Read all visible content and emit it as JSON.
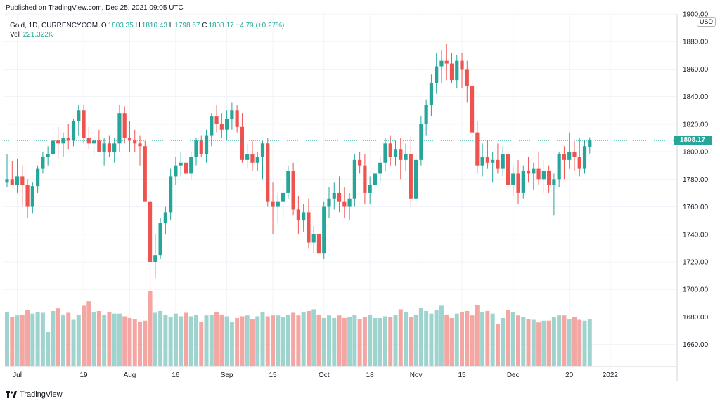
{
  "header": {
    "published": "Published on TradingView.com, Dec 25, 2021 09:05 UTC"
  },
  "legend": {
    "symbol": "Gold, 1D, CURRENCYCOM",
    "o_label": "O",
    "o": "1803.35",
    "h_label": "H",
    "h": "1810.43",
    "l_label": "L",
    "l": "1798.67",
    "c_label": "C",
    "c": "1808.17",
    "change": "+4.79 (+0.27%)",
    "vol_label": "Vol",
    "vol": "221.322K"
  },
  "currency": "USD",
  "last_price": "1808.17",
  "footer": {
    "brand": "TradingView"
  },
  "colors": {
    "up": "#26a69a",
    "down": "#ef5350",
    "vol_up": "#9ed4cd",
    "vol_down": "#f4a6a3"
  },
  "chart_data": {
    "type": "candlestick",
    "title": "Gold, 1D, CURRENCYCOM",
    "y_ticks": [
      "1660.00",
      "1680.00",
      "1700.00",
      "1720.00",
      "1740.00",
      "1760.00",
      "1780.00",
      "1800.00",
      "1820.00",
      "1840.00",
      "1860.00",
      "1880.00",
      "1900.00"
    ],
    "ylim": [
      1644,
      1900
    ],
    "x_labels": [
      {
        "label": "Jul",
        "index": 2
      },
      {
        "label": "19",
        "index": 15
      },
      {
        "label": "Aug",
        "index": 24
      },
      {
        "label": "16",
        "index": 33
      },
      {
        "label": "Sep",
        "index": 43
      },
      {
        "label": "15",
        "index": 52
      },
      {
        "label": "Oct",
        "index": 62
      },
      {
        "label": "18",
        "index": 71
      },
      {
        "label": "Nov",
        "index": 80
      },
      {
        "label": "15",
        "index": 89
      },
      {
        "label": "Dec",
        "index": 99
      },
      {
        "label": "20",
        "index": 110
      },
      {
        "label": "2022",
        "index": 118
      }
    ],
    "candles": [
      [
        1778,
        1798,
        1774,
        1780,
        0.62
      ],
      [
        1780,
        1793,
        1776,
        1776,
        0.56
      ],
      [
        1776,
        1795,
        1770,
        1782,
        0.58
      ],
      [
        1782,
        1790,
        1760,
        1776,
        0.59
      ],
      [
        1776,
        1780,
        1752,
        1760,
        0.64
      ],
      [
        1760,
        1778,
        1755,
        1775,
        0.6
      ],
      [
        1775,
        1790,
        1770,
        1788,
        0.62
      ],
      [
        1788,
        1800,
        1784,
        1796,
        0.61
      ],
      [
        1796,
        1804,
        1790,
        1798,
        0.39
      ],
      [
        1798,
        1812,
        1794,
        1808,
        0.63
      ],
      [
        1808,
        1818,
        1795,
        1806,
        0.66
      ],
      [
        1806,
        1814,
        1796,
        1810,
        0.59
      ],
      [
        1810,
        1820,
        1802,
        1808,
        0.61
      ],
      [
        1808,
        1824,
        1804,
        1822,
        0.53
      ],
      [
        1822,
        1834,
        1812,
        1830,
        0.59
      ],
      [
        1830,
        1834,
        1806,
        1810,
        0.69
      ],
      [
        1810,
        1818,
        1802,
        1806,
        0.74
      ],
      [
        1806,
        1812,
        1796,
        1808,
        0.62
      ],
      [
        1808,
        1816,
        1800,
        1800,
        0.63
      ],
      [
        1800,
        1810,
        1790,
        1806,
        0.59
      ],
      [
        1806,
        1812,
        1796,
        1800,
        0.62
      ],
      [
        1800,
        1810,
        1792,
        1806,
        0.6
      ],
      [
        1806,
        1834,
        1800,
        1828,
        0.6
      ],
      [
        1828,
        1833,
        1806,
        1810,
        0.57
      ],
      [
        1810,
        1822,
        1800,
        1808,
        0.55
      ],
      [
        1808,
        1816,
        1800,
        1806,
        0.54
      ],
      [
        1806,
        1812,
        1790,
        1804,
        0.51
      ],
      [
        1804,
        1808,
        1766,
        1764,
        0.52
      ],
      [
        1764,
        1768,
        1670,
        1720,
        0.86
      ],
      [
        1720,
        1740,
        1708,
        1725,
        0.61
      ],
      [
        1725,
        1752,
        1722,
        1748,
        0.63
      ],
      [
        1748,
        1760,
        1740,
        1756,
        0.59
      ],
      [
        1756,
        1788,
        1750,
        1782,
        0.56
      ],
      [
        1782,
        1796,
        1776,
        1790,
        0.6
      ],
      [
        1790,
        1800,
        1782,
        1792,
        0.57
      ],
      [
        1792,
        1798,
        1780,
        1784,
        0.61
      ],
      [
        1784,
        1800,
        1780,
        1796,
        0.57
      ],
      [
        1796,
        1810,
        1790,
        1808,
        0.59
      ],
      [
        1808,
        1812,
        1796,
        1798,
        0.51
      ],
      [
        1798,
        1816,
        1792,
        1812,
        0.58
      ],
      [
        1812,
        1828,
        1804,
        1826,
        0.59
      ],
      [
        1826,
        1834,
        1814,
        1820,
        0.62
      ],
      [
        1820,
        1828,
        1810,
        1816,
        0.59
      ],
      [
        1816,
        1830,
        1808,
        1824,
        0.57
      ],
      [
        1824,
        1836,
        1816,
        1830,
        0.51
      ],
      [
        1830,
        1834,
        1814,
        1818,
        0.55
      ],
      [
        1818,
        1828,
        1792,
        1794,
        0.57
      ],
      [
        1794,
        1806,
        1788,
        1798,
        0.58
      ],
      [
        1798,
        1808,
        1786,
        1792,
        0.54
      ],
      [
        1792,
        1800,
        1786,
        1796,
        0.57
      ],
      [
        1796,
        1808,
        1780,
        1806,
        0.62
      ],
      [
        1806,
        1810,
        1760,
        1764,
        0.57
      ],
      [
        1764,
        1778,
        1740,
        1760,
        0.58
      ],
      [
        1760,
        1770,
        1748,
        1764,
        0.58
      ],
      [
        1764,
        1776,
        1752,
        1770,
        0.56
      ],
      [
        1770,
        1790,
        1766,
        1786,
        0.59
      ],
      [
        1786,
        1792,
        1754,
        1758,
        0.61
      ],
      [
        1758,
        1768,
        1740,
        1750,
        0.58
      ],
      [
        1750,
        1762,
        1742,
        1756,
        0.62
      ],
      [
        1756,
        1766,
        1730,
        1734,
        0.63
      ],
      [
        1734,
        1746,
        1726,
        1740,
        0.65
      ],
      [
        1740,
        1752,
        1722,
        1726,
        0.59
      ],
      [
        1726,
        1764,
        1722,
        1760,
        0.55
      ],
      [
        1760,
        1774,
        1752,
        1766,
        0.58
      ],
      [
        1766,
        1778,
        1758,
        1770,
        0.55
      ],
      [
        1770,
        1782,
        1756,
        1764,
        0.58
      ],
      [
        1764,
        1774,
        1752,
        1760,
        0.55
      ],
      [
        1760,
        1770,
        1750,
        1766,
        0.56
      ],
      [
        1766,
        1798,
        1760,
        1794,
        0.59
      ],
      [
        1794,
        1800,
        1784,
        1790,
        0.54
      ],
      [
        1790,
        1798,
        1762,
        1770,
        0.56
      ],
      [
        1770,
        1782,
        1762,
        1776,
        0.59
      ],
      [
        1776,
        1788,
        1770,
        1784,
        0.55
      ],
      [
        1784,
        1796,
        1778,
        1792,
        0.55
      ],
      [
        1792,
        1810,
        1786,
        1806,
        0.57
      ],
      [
        1806,
        1812,
        1790,
        1796,
        0.56
      ],
      [
        1796,
        1808,
        1790,
        1802,
        0.59
      ],
      [
        1802,
        1810,
        1780,
        1794,
        0.65
      ],
      [
        1794,
        1806,
        1786,
        1798,
        0.62
      ],
      [
        1798,
        1812,
        1760,
        1766,
        0.56
      ],
      [
        1766,
        1798,
        1764,
        1794,
        0.59
      ],
      [
        1794,
        1826,
        1790,
        1820,
        0.67
      ],
      [
        1820,
        1838,
        1812,
        1834,
        0.63
      ],
      [
        1834,
        1856,
        1826,
        1850,
        0.6
      ],
      [
        1850,
        1872,
        1842,
        1862,
        0.64
      ],
      [
        1862,
        1874,
        1850,
        1866,
        0.69
      ],
      [
        1866,
        1878,
        1852,
        1864,
        0.59
      ],
      [
        1864,
        1872,
        1850,
        1852,
        0.55
      ],
      [
        1852,
        1870,
        1846,
        1866,
        0.6
      ],
      [
        1866,
        1872,
        1846,
        1860,
        0.62
      ],
      [
        1860,
        1866,
        1836,
        1848,
        0.63
      ],
      [
        1848,
        1852,
        1810,
        1814,
        0.58
      ],
      [
        1814,
        1822,
        1784,
        1790,
        0.7
      ],
      [
        1790,
        1806,
        1782,
        1796,
        0.62
      ],
      [
        1796,
        1808,
        1788,
        1792,
        0.63
      ],
      [
        1792,
        1800,
        1778,
        1794,
        0.6
      ],
      [
        1794,
        1806,
        1784,
        1788,
        0.48
      ],
      [
        1788,
        1804,
        1782,
        1798,
        0.55
      ],
      [
        1798,
        1804,
        1772,
        1776,
        0.64
      ],
      [
        1776,
        1790,
        1768,
        1784,
        0.62
      ],
      [
        1784,
        1794,
        1762,
        1770,
        0.58
      ],
      [
        1770,
        1790,
        1766,
        1786,
        0.56
      ],
      [
        1786,
        1796,
        1778,
        1784,
        0.54
      ],
      [
        1784,
        1792,
        1772,
        1788,
        0.53
      ],
      [
        1788,
        1800,
        1776,
        1780,
        0.5
      ],
      [
        1780,
        1794,
        1770,
        1786,
        0.52
      ],
      [
        1786,
        1790,
        1770,
        1776,
        0.52
      ],
      [
        1776,
        1784,
        1754,
        1780,
        0.56
      ],
      [
        1780,
        1800,
        1774,
        1798,
        0.58
      ],
      [
        1798,
        1804,
        1780,
        1794,
        0.58
      ],
      [
        1794,
        1814,
        1788,
        1800,
        0.54
      ],
      [
        1800,
        1808,
        1786,
        1796,
        0.56
      ],
      [
        1796,
        1810,
        1782,
        1788,
        0.53
      ],
      [
        1788,
        1808,
        1784,
        1804,
        0.52
      ],
      [
        1803.35,
        1810.43,
        1798.67,
        1808.17,
        0.54
      ]
    ]
  }
}
